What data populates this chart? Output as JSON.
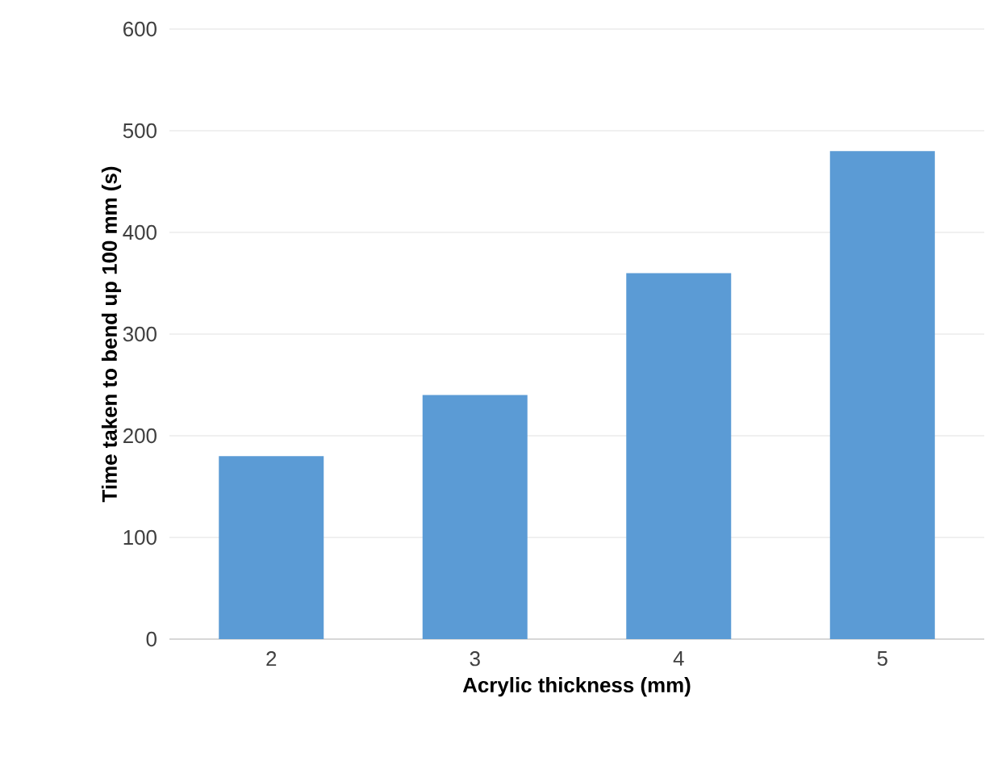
{
  "chart_data": {
    "type": "bar",
    "xlabel": "Acrylic thickness (mm)",
    "ylabel": "Time taken to bend up 100 mm (s)",
    "categories": [
      "2",
      "3",
      "4",
      "5"
    ],
    "values": [
      180,
      240,
      360,
      480
    ],
    "color": "#5b9bd5",
    "ylim": [
      0,
      600
    ],
    "yticks": [
      0,
      100,
      200,
      300,
      400,
      500,
      600
    ],
    "grid": "y"
  }
}
